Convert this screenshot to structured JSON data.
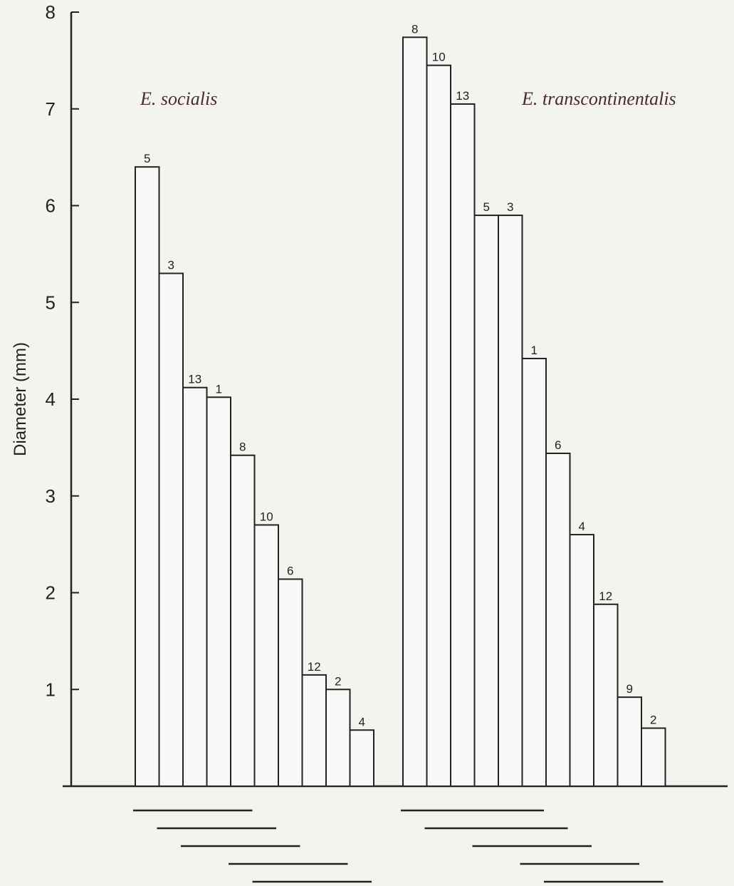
{
  "chart_data": {
    "type": "bar",
    "ylabel": "Diameter (mm)",
    "ylim": [
      0,
      8
    ],
    "yticks": [
      1,
      2,
      3,
      4,
      5,
      6,
      7,
      8
    ],
    "grid": false,
    "groups": [
      {
        "name": "E. socialis",
        "bars": [
          {
            "label": "5",
            "value": 6.4
          },
          {
            "label": "3",
            "value": 5.3
          },
          {
            "label": "13",
            "value": 4.12
          },
          {
            "label": "1",
            "value": 4.02
          },
          {
            "label": "8",
            "value": 3.42
          },
          {
            "label": "10",
            "value": 2.7
          },
          {
            "label": "6",
            "value": 2.14
          },
          {
            "label": "12",
            "value": 1.15
          },
          {
            "label": "2",
            "value": 1.0
          },
          {
            "label": "4",
            "value": 0.58
          }
        ],
        "underlines": [
          [
            0,
            4
          ],
          [
            1,
            5
          ],
          [
            2,
            6
          ],
          [
            4,
            8
          ],
          [
            5,
            9
          ]
        ]
      },
      {
        "name": "E. transcontinentalis",
        "bars": [
          {
            "label": "8",
            "value": 7.74
          },
          {
            "label": "10",
            "value": 7.45
          },
          {
            "label": "13",
            "value": 7.05
          },
          {
            "label": "5",
            "value": 5.9
          },
          {
            "label": "3",
            "value": 5.9
          },
          {
            "label": "1",
            "value": 4.42
          },
          {
            "label": "6",
            "value": 3.44
          },
          {
            "label": "4",
            "value": 2.6
          },
          {
            "label": "12",
            "value": 1.88
          },
          {
            "label": "9",
            "value": 0.92
          },
          {
            "label": "2",
            "value": 0.6
          }
        ],
        "underlines": [
          [
            0,
            5
          ],
          [
            1,
            6
          ],
          [
            3,
            7
          ],
          [
            5,
            9
          ],
          [
            6,
            10
          ]
        ]
      }
    ]
  }
}
